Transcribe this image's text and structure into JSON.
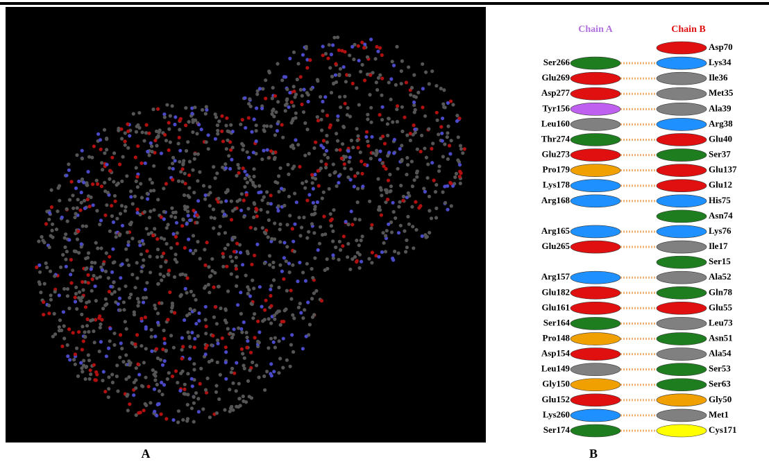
{
  "panels": {
    "a": {
      "label": "A"
    },
    "b": {
      "label": "B",
      "chain_a_title": "Chain A",
      "chain_b_title": "Chain B",
      "rows": [
        {
          "chain_a": null,
          "chain_b": {
            "label": "Asp70",
            "color": "#e01010"
          }
        },
        {
          "chain_a": {
            "label": "Ser266",
            "color": "#1e7d1e"
          },
          "chain_b": {
            "label": "Lys34",
            "color": "#1e90ff"
          }
        },
        {
          "chain_a": {
            "label": "Glu269",
            "color": "#e01010"
          },
          "chain_b": {
            "label": "Ile36",
            "color": "#808080"
          }
        },
        {
          "chain_a": {
            "label": "Asp277",
            "color": "#e01010"
          },
          "chain_b": {
            "label": "Met35",
            "color": "#808080"
          }
        },
        {
          "chain_a": {
            "label": "Tyr156",
            "color": "#c060f0"
          },
          "chain_b": {
            "label": "Ala39",
            "color": "#808080"
          }
        },
        {
          "chain_a": {
            "label": "Leu160",
            "color": "#808080"
          },
          "chain_b": {
            "label": "Arg38",
            "color": "#1e90ff"
          }
        },
        {
          "chain_a": {
            "label": "Thr274",
            "color": "#1e7d1e"
          },
          "chain_b": {
            "label": "Glu40",
            "color": "#e01010"
          }
        },
        {
          "chain_a": {
            "label": "Glu273",
            "color": "#e01010"
          },
          "chain_b": {
            "label": "Ser37",
            "color": "#1e7d1e"
          }
        },
        {
          "chain_a": {
            "label": "Pro179",
            "color": "#f0a000"
          },
          "chain_b": {
            "label": "Glu137",
            "color": "#e01010"
          }
        },
        {
          "chain_a": {
            "label": "Lys178",
            "color": "#1e90ff"
          },
          "chain_b": {
            "label": "Glu12",
            "color": "#e01010"
          }
        },
        {
          "chain_a": {
            "label": "Arg168",
            "color": "#1e90ff"
          },
          "chain_b": {
            "label": "His75",
            "color": "#1e90ff"
          }
        },
        {
          "chain_a": null,
          "chain_b": {
            "label": "Asn74",
            "color": "#1e7d1e"
          }
        },
        {
          "chain_a": {
            "label": "Arg165",
            "color": "#1e90ff"
          },
          "chain_b": {
            "label": "Lys76",
            "color": "#1e90ff"
          }
        },
        {
          "chain_a": {
            "label": "Glu265",
            "color": "#e01010"
          },
          "chain_b": {
            "label": "Ile17",
            "color": "#808080"
          }
        },
        {
          "chain_a": null,
          "chain_b": {
            "label": "Ser15",
            "color": "#1e7d1e"
          }
        },
        {
          "chain_a": {
            "label": "Arg157",
            "color": "#1e90ff"
          },
          "chain_b": {
            "label": "Ala52",
            "color": "#808080"
          }
        },
        {
          "chain_a": {
            "label": "Glu182",
            "color": "#e01010"
          },
          "chain_b": {
            "label": "Gln78",
            "color": "#1e7d1e"
          }
        },
        {
          "chain_a": {
            "label": "Glu161",
            "color": "#e01010"
          },
          "chain_b": {
            "label": "Glu55",
            "color": "#e01010"
          }
        },
        {
          "chain_a": {
            "label": "Ser164",
            "color": "#1e7d1e"
          },
          "chain_b": {
            "label": "Leu73",
            "color": "#808080"
          }
        },
        {
          "chain_a": {
            "label": "Pro148",
            "color": "#f0a000"
          },
          "chain_b": {
            "label": "Asn51",
            "color": "#1e7d1e"
          }
        },
        {
          "chain_a": {
            "label": "Asp154",
            "color": "#e01010"
          },
          "chain_b": {
            "label": "Ala54",
            "color": "#808080"
          }
        },
        {
          "chain_a": {
            "label": "Leu149",
            "color": "#808080"
          },
          "chain_b": {
            "label": "Ser53",
            "color": "#1e7d1e"
          }
        },
        {
          "chain_a": {
            "label": "Gly150",
            "color": "#f0a000"
          },
          "chain_b": {
            "label": "Ser63",
            "color": "#1e7d1e"
          }
        },
        {
          "chain_a": {
            "label": "Glu152",
            "color": "#e01010"
          },
          "chain_b": {
            "label": "Gly50",
            "color": "#f0a000"
          }
        },
        {
          "chain_a": {
            "label": "Lys260",
            "color": "#1e90ff"
          },
          "chain_b": {
            "label": "Met1",
            "color": "#808080"
          }
        },
        {
          "chain_a": {
            "label": "Ser174",
            "color": "#1e7d1e"
          },
          "chain_b": {
            "label": "Cys171",
            "color": "#ffff00"
          }
        }
      ]
    }
  }
}
